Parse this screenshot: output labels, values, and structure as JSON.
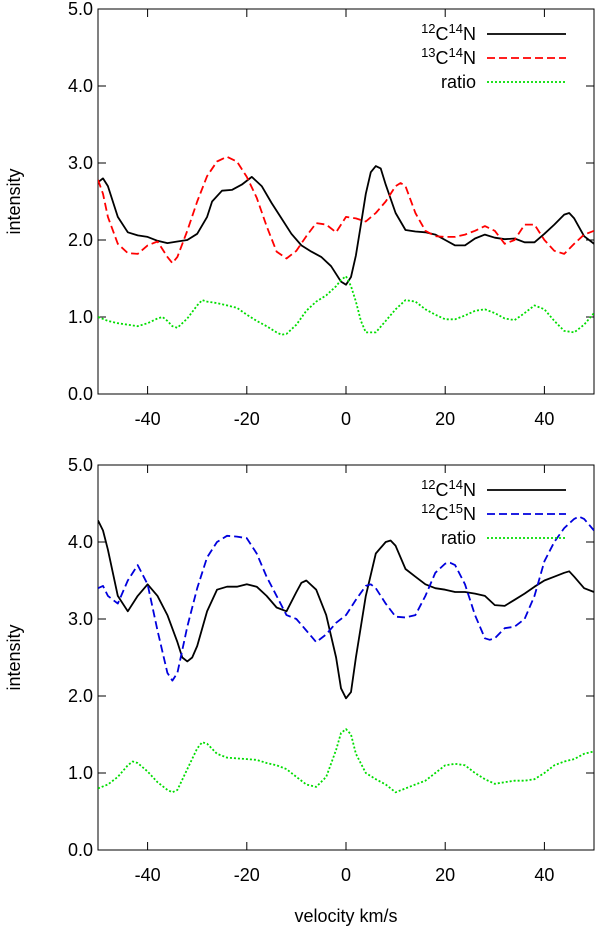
{
  "chart_data": [
    {
      "type": "line",
      "xlabel": "",
      "ylabel": "intensity",
      "xlim": [
        -50,
        50
      ],
      "ylim": [
        0,
        5
      ],
      "xticks": [
        -40,
        -20,
        0,
        20,
        40
      ],
      "xtick_labels": [
        "-40",
        "-20",
        "0",
        "20",
        "40"
      ],
      "yticks": [
        0,
        1,
        2,
        3,
        4,
        5
      ],
      "ytick_labels": [
        "0.0",
        "1.0",
        "2.0",
        "3.0",
        "4.0",
        "5.0"
      ],
      "legend_position": "top-right",
      "series": [
        {
          "name": "12C14N",
          "legend": {
            "sup1": "12",
            "el1": "C",
            "sup2": "14",
            "el2": "N"
          },
          "color": "#000000",
          "dash": "solid",
          "x": [
            -50,
            -49,
            -48,
            -46,
            -44,
            -42,
            -40,
            -38,
            -36,
            -34,
            -32,
            -30,
            -28,
            -27,
            -25,
            -23,
            -21,
            -19,
            -17,
            -15,
            -13,
            -11,
            -9,
            -7,
            -5,
            -3,
            -1,
            0,
            1,
            2,
            3,
            4,
            5,
            6,
            7,
            8,
            10,
            12,
            14,
            16,
            18,
            20,
            22,
            24,
            26,
            28,
            30,
            32,
            34,
            36,
            38,
            40,
            42,
            44,
            45,
            46,
            48,
            50
          ],
          "y": [
            2.75,
            2.8,
            2.7,
            2.3,
            2.1,
            2.06,
            2.04,
            1.99,
            1.96,
            1.98,
            2.0,
            2.08,
            2.3,
            2.5,
            2.64,
            2.65,
            2.72,
            2.82,
            2.7,
            2.48,
            2.28,
            2.08,
            1.93,
            1.85,
            1.78,
            1.66,
            1.46,
            1.42,
            1.52,
            1.8,
            2.2,
            2.6,
            2.88,
            2.96,
            2.93,
            2.72,
            2.35,
            2.13,
            2.11,
            2.1,
            2.07,
            2.0,
            1.93,
            1.93,
            2.02,
            2.07,
            2.03,
            2.01,
            2.02,
            1.97,
            1.97,
            2.08,
            2.2,
            2.33,
            2.35,
            2.28,
            2.05,
            1.95
          ]
        },
        {
          "name": "13C14N",
          "legend": {
            "sup1": "13",
            "el1": "C",
            "sup2": "14",
            "el2": "N"
          },
          "color": "#ff0000",
          "dash": "dashed",
          "x": [
            -50,
            -49,
            -48,
            -46,
            -44,
            -42,
            -40,
            -38,
            -36,
            -35,
            -34,
            -32,
            -30,
            -28,
            -26,
            -24,
            -22,
            -20,
            -18,
            -16,
            -14,
            -12,
            -10,
            -8,
            -6,
            -4,
            -2,
            0,
            2,
            4,
            6,
            8,
            10,
            11,
            12,
            14,
            16,
            18,
            20,
            22,
            24,
            26,
            28,
            30,
            32,
            34,
            36,
            38,
            40,
            42,
            44,
            46,
            48,
            50
          ],
          "y": [
            2.78,
            2.6,
            2.3,
            1.95,
            1.83,
            1.82,
            1.93,
            1.98,
            1.78,
            1.7,
            1.78,
            2.12,
            2.5,
            2.83,
            3.02,
            3.08,
            3.02,
            2.82,
            2.55,
            2.18,
            1.85,
            1.76,
            1.86,
            2.05,
            2.22,
            2.2,
            2.1,
            2.3,
            2.28,
            2.24,
            2.35,
            2.5,
            2.7,
            2.74,
            2.7,
            2.35,
            2.12,
            2.05,
            2.04,
            2.04,
            2.07,
            2.12,
            2.18,
            2.12,
            1.95,
            2.0,
            2.2,
            2.2,
            2.0,
            1.86,
            1.82,
            1.95,
            2.07,
            2.12
          ]
        },
        {
          "name": "ratio",
          "legend": {
            "text": "ratio"
          },
          "color": "#00dd00",
          "dash": "dotted",
          "x": [
            -50,
            -48,
            -46,
            -44,
            -42,
            -40,
            -38,
            -37,
            -36,
            -35,
            -34,
            -32,
            -30,
            -29,
            -28,
            -26,
            -24,
            -22,
            -20,
            -18,
            -16,
            -14,
            -13,
            -12,
            -10,
            -8,
            -6,
            -4,
            -2,
            -1,
            0,
            1,
            2,
            3,
            4,
            6,
            8,
            10,
            12,
            14,
            16,
            18,
            20,
            22,
            24,
            26,
            28,
            30,
            32,
            34,
            36,
            38,
            40,
            42,
            44,
            46,
            48,
            50
          ],
          "y": [
            1.0,
            0.95,
            0.92,
            0.9,
            0.88,
            0.92,
            0.98,
            1.0,
            0.95,
            0.88,
            0.86,
            0.98,
            1.15,
            1.22,
            1.2,
            1.18,
            1.15,
            1.12,
            1.03,
            0.95,
            0.88,
            0.8,
            0.77,
            0.78,
            0.9,
            1.08,
            1.2,
            1.28,
            1.4,
            1.48,
            1.53,
            1.4,
            1.2,
            0.95,
            0.8,
            0.8,
            0.95,
            1.1,
            1.22,
            1.2,
            1.1,
            1.03,
            0.97,
            0.97,
            1.02,
            1.08,
            1.1,
            1.05,
            0.98,
            0.96,
            1.05,
            1.15,
            1.1,
            0.95,
            0.82,
            0.8,
            0.9,
            1.05
          ]
        }
      ]
    },
    {
      "type": "line",
      "xlabel": "velocity km/s",
      "ylabel": "intensity",
      "xlim": [
        -50,
        50
      ],
      "ylim": [
        0,
        5
      ],
      "xticks": [
        -40,
        -20,
        0,
        20,
        40
      ],
      "xtick_labels": [
        "-40",
        "-20",
        "0",
        "20",
        "40"
      ],
      "yticks": [
        0,
        1,
        2,
        3,
        4,
        5
      ],
      "ytick_labels": [
        "0.0",
        "1.0",
        "2.0",
        "3.0",
        "4.0",
        "5.0"
      ],
      "legend_position": "top-right",
      "series": [
        {
          "name": "12C14N",
          "legend": {
            "sup1": "12",
            "el1": "C",
            "sup2": "14",
            "el2": "N"
          },
          "color": "#000000",
          "dash": "solid",
          "x": [
            -50,
            -49,
            -48,
            -46,
            -44,
            -42,
            -40,
            -38,
            -36,
            -34,
            -33,
            -32,
            -31,
            -30,
            -28,
            -26,
            -24,
            -22,
            -20,
            -18,
            -16,
            -14,
            -12,
            -10,
            -9,
            -8,
            -6,
            -4,
            -2,
            -1,
            0,
            1,
            2,
            4,
            6,
            8,
            9,
            10,
            12,
            14,
            16,
            18,
            20,
            22,
            24,
            26,
            28,
            30,
            32,
            34,
            36,
            38,
            40,
            42,
            44,
            45,
            46,
            48,
            50
          ],
          "y": [
            4.28,
            4.15,
            3.9,
            3.3,
            3.1,
            3.3,
            3.45,
            3.3,
            3.05,
            2.7,
            2.5,
            2.45,
            2.5,
            2.65,
            3.1,
            3.38,
            3.42,
            3.42,
            3.45,
            3.42,
            3.3,
            3.15,
            3.1,
            3.35,
            3.47,
            3.5,
            3.38,
            3.05,
            2.5,
            2.1,
            1.97,
            2.05,
            2.5,
            3.3,
            3.85,
            4.0,
            4.02,
            3.95,
            3.65,
            3.55,
            3.45,
            3.4,
            3.38,
            3.35,
            3.35,
            3.33,
            3.3,
            3.18,
            3.17,
            3.25,
            3.33,
            3.42,
            3.5,
            3.55,
            3.6,
            3.62,
            3.55,
            3.4,
            3.35
          ]
        },
        {
          "name": "12C15N",
          "legend": {
            "sup1": "12",
            "el1": "C",
            "sup2": "15",
            "el2": "N"
          },
          "color": "#0000dd",
          "dash": "dashed",
          "x": [
            -50,
            -49,
            -48,
            -46,
            -44,
            -42,
            -40,
            -38,
            -36,
            -35,
            -34,
            -32,
            -30,
            -28,
            -26,
            -24,
            -22,
            -20,
            -18,
            -16,
            -14,
            -12,
            -10,
            -8,
            -6,
            -4,
            -2,
            0,
            2,
            4,
            5,
            6,
            8,
            10,
            12,
            14,
            16,
            18,
            20,
            21,
            22,
            24,
            26,
            28,
            29,
            30,
            32,
            34,
            36,
            38,
            40,
            42,
            44,
            46,
            47,
            48,
            50
          ],
          "y": [
            3.4,
            3.43,
            3.3,
            3.2,
            3.5,
            3.7,
            3.45,
            2.85,
            2.3,
            2.2,
            2.3,
            2.9,
            3.4,
            3.8,
            4.0,
            4.08,
            4.07,
            4.05,
            3.85,
            3.55,
            3.3,
            3.05,
            3.0,
            2.85,
            2.7,
            2.8,
            2.95,
            3.05,
            3.25,
            3.43,
            3.45,
            3.4,
            3.2,
            3.03,
            3.02,
            3.05,
            3.3,
            3.6,
            3.72,
            3.73,
            3.7,
            3.45,
            3.05,
            2.75,
            2.73,
            2.75,
            2.88,
            2.9,
            3.0,
            3.3,
            3.75,
            4.0,
            4.18,
            4.3,
            4.33,
            4.3,
            4.15
          ]
        },
        {
          "name": "ratio",
          "legend": {
            "text": "ratio"
          },
          "color": "#00dd00",
          "dash": "dotted",
          "x": [
            -50,
            -48,
            -46,
            -44,
            -43,
            -42,
            -40,
            -38,
            -36,
            -35,
            -34,
            -32,
            -30,
            -29,
            -28,
            -26,
            -24,
            -22,
            -20,
            -18,
            -16,
            -14,
            -12,
            -10,
            -8,
            -6,
            -4,
            -2,
            -1,
            0,
            1,
            2,
            4,
            6,
            8,
            10,
            12,
            14,
            16,
            18,
            20,
            22,
            24,
            26,
            28,
            30,
            32,
            34,
            36,
            38,
            40,
            42,
            44,
            46,
            48,
            50
          ],
          "y": [
            0.8,
            0.85,
            0.95,
            1.1,
            1.15,
            1.13,
            1.02,
            0.88,
            0.78,
            0.75,
            0.78,
            1.05,
            1.32,
            1.4,
            1.38,
            1.25,
            1.2,
            1.19,
            1.18,
            1.17,
            1.13,
            1.1,
            1.05,
            0.95,
            0.85,
            0.82,
            0.95,
            1.3,
            1.52,
            1.57,
            1.5,
            1.25,
            1.0,
            0.92,
            0.85,
            0.75,
            0.8,
            0.85,
            0.9,
            1.0,
            1.1,
            1.12,
            1.1,
            1.0,
            0.92,
            0.86,
            0.88,
            0.9,
            0.9,
            0.92,
            1.0,
            1.1,
            1.15,
            1.18,
            1.25,
            1.28
          ]
        }
      ]
    }
  ]
}
